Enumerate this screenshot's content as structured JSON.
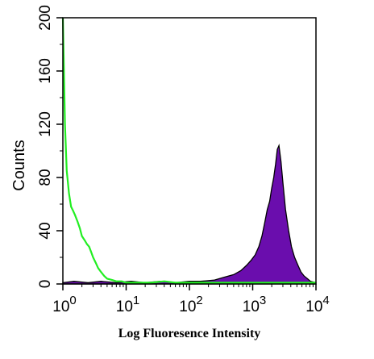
{
  "chart_data": {
    "type": "area",
    "title": "",
    "xlabel": "Log Fluoresence Intensity",
    "ylabel": "Counts",
    "x_scale": "log",
    "xlim": [
      1,
      10000
    ],
    "ylim": [
      0,
      200
    ],
    "x_ticks": [
      {
        "value": 1,
        "base": "10",
        "exp": "0"
      },
      {
        "value": 10,
        "base": "10",
        "exp": "1"
      },
      {
        "value": 100,
        "base": "10",
        "exp": "2"
      },
      {
        "value": 1000,
        "base": "10",
        "exp": "3"
      },
      {
        "value": 10000,
        "base": "10",
        "exp": "4"
      }
    ],
    "y_ticks": [
      {
        "value": 0,
        "label": "0"
      },
      {
        "value": 40,
        "label": "40"
      },
      {
        "value": 80,
        "label": "80"
      },
      {
        "value": 120,
        "label": "120"
      },
      {
        "value": 160,
        "label": "160"
      },
      {
        "value": 200,
        "label": "200"
      }
    ],
    "grid": false,
    "legend": "none",
    "series": [
      {
        "style": "filled",
        "fill_color": "#6a0dad",
        "line_color": "#000000",
        "x": [
          1,
          1.5,
          2.5,
          4,
          7,
          12,
          20,
          35,
          60,
          100,
          150,
          250,
          350,
          500,
          650,
          800,
          950,
          1100,
          1250,
          1400,
          1550,
          1700,
          1850,
          2000,
          2150,
          2300,
          2450,
          2600,
          2800,
          3000,
          3300,
          3700,
          4100,
          4600,
          5200,
          5800,
          6500,
          7300,
          8200,
          10000
        ],
        "y": [
          1,
          2,
          1,
          2,
          1,
          2,
          1,
          2,
          1,
          2,
          2,
          3,
          5,
          7,
          10,
          14,
          18,
          22,
          28,
          36,
          46,
          56,
          62,
          72,
          80,
          90,
          101,
          104,
          92,
          76,
          56,
          40,
          28,
          20,
          14,
          9,
          6,
          4,
          2,
          1
        ]
      },
      {
        "style": "line",
        "line_color": "#22ee22",
        "x": [
          1,
          1.03,
          1.08,
          1.15,
          1.25,
          1.35,
          1.45,
          1.55,
          1.7,
          1.85,
          2.0,
          2.2,
          2.4,
          2.6,
          2.8,
          3.0,
          3.3,
          3.6,
          4.0,
          4.5,
          5.0,
          6.0,
          7.0,
          8.5,
          10,
          15,
          25,
          40,
          60,
          100,
          200,
          500,
          1000,
          2000,
          5000,
          10000
        ],
        "y": [
          200,
          170,
          120,
          85,
          68,
          58,
          55,
          52,
          47,
          42,
          36,
          33,
          30,
          28,
          24,
          20,
          16,
          12,
          9,
          6,
          4,
          3,
          2,
          2,
          1,
          1,
          1,
          2,
          1,
          1,
          1,
          1,
          1,
          1,
          1,
          1
        ]
      }
    ]
  }
}
